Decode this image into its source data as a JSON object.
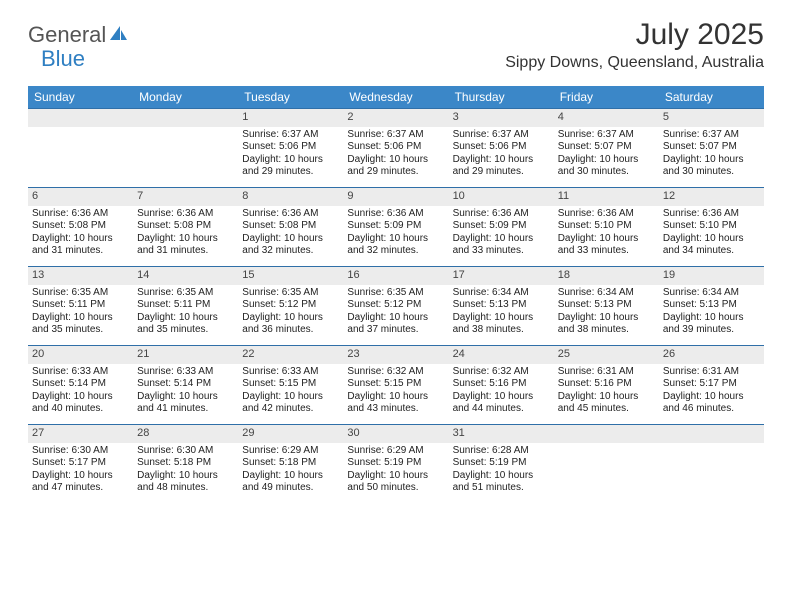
{
  "logo": {
    "part1": "General",
    "part2": "Blue"
  },
  "title": "July 2025",
  "location": "Sippy Downs, Queensland, Australia",
  "colors": {
    "header_bg": "#3b87c8",
    "header_text": "#ffffff",
    "daynum_bg": "#ececec",
    "week_border": "#2f6fa8",
    "logo_accent": "#2f7fc2",
    "logo_gray": "#555555",
    "body_bg": "#ffffff",
    "text": "#222222"
  },
  "day_headers": [
    "Sunday",
    "Monday",
    "Tuesday",
    "Wednesday",
    "Thursday",
    "Friday",
    "Saturday"
  ],
  "weeks": [
    [
      null,
      null,
      {
        "n": "1",
        "sr": "6:37 AM",
        "ss": "5:06 PM",
        "dl": "10 hours and 29 minutes."
      },
      {
        "n": "2",
        "sr": "6:37 AM",
        "ss": "5:06 PM",
        "dl": "10 hours and 29 minutes."
      },
      {
        "n": "3",
        "sr": "6:37 AM",
        "ss": "5:06 PM",
        "dl": "10 hours and 29 minutes."
      },
      {
        "n": "4",
        "sr": "6:37 AM",
        "ss": "5:07 PM",
        "dl": "10 hours and 30 minutes."
      },
      {
        "n": "5",
        "sr": "6:37 AM",
        "ss": "5:07 PM",
        "dl": "10 hours and 30 minutes."
      }
    ],
    [
      {
        "n": "6",
        "sr": "6:36 AM",
        "ss": "5:08 PM",
        "dl": "10 hours and 31 minutes."
      },
      {
        "n": "7",
        "sr": "6:36 AM",
        "ss": "5:08 PM",
        "dl": "10 hours and 31 minutes."
      },
      {
        "n": "8",
        "sr": "6:36 AM",
        "ss": "5:08 PM",
        "dl": "10 hours and 32 minutes."
      },
      {
        "n": "9",
        "sr": "6:36 AM",
        "ss": "5:09 PM",
        "dl": "10 hours and 32 minutes."
      },
      {
        "n": "10",
        "sr": "6:36 AM",
        "ss": "5:09 PM",
        "dl": "10 hours and 33 minutes."
      },
      {
        "n": "11",
        "sr": "6:36 AM",
        "ss": "5:10 PM",
        "dl": "10 hours and 33 minutes."
      },
      {
        "n": "12",
        "sr": "6:36 AM",
        "ss": "5:10 PM",
        "dl": "10 hours and 34 minutes."
      }
    ],
    [
      {
        "n": "13",
        "sr": "6:35 AM",
        "ss": "5:11 PM",
        "dl": "10 hours and 35 minutes."
      },
      {
        "n": "14",
        "sr": "6:35 AM",
        "ss": "5:11 PM",
        "dl": "10 hours and 35 minutes."
      },
      {
        "n": "15",
        "sr": "6:35 AM",
        "ss": "5:12 PM",
        "dl": "10 hours and 36 minutes."
      },
      {
        "n": "16",
        "sr": "6:35 AM",
        "ss": "5:12 PM",
        "dl": "10 hours and 37 minutes."
      },
      {
        "n": "17",
        "sr": "6:34 AM",
        "ss": "5:13 PM",
        "dl": "10 hours and 38 minutes."
      },
      {
        "n": "18",
        "sr": "6:34 AM",
        "ss": "5:13 PM",
        "dl": "10 hours and 38 minutes."
      },
      {
        "n": "19",
        "sr": "6:34 AM",
        "ss": "5:13 PM",
        "dl": "10 hours and 39 minutes."
      }
    ],
    [
      {
        "n": "20",
        "sr": "6:33 AM",
        "ss": "5:14 PM",
        "dl": "10 hours and 40 minutes."
      },
      {
        "n": "21",
        "sr": "6:33 AM",
        "ss": "5:14 PM",
        "dl": "10 hours and 41 minutes."
      },
      {
        "n": "22",
        "sr": "6:33 AM",
        "ss": "5:15 PM",
        "dl": "10 hours and 42 minutes."
      },
      {
        "n": "23",
        "sr": "6:32 AM",
        "ss": "5:15 PM",
        "dl": "10 hours and 43 minutes."
      },
      {
        "n": "24",
        "sr": "6:32 AM",
        "ss": "5:16 PM",
        "dl": "10 hours and 44 minutes."
      },
      {
        "n": "25",
        "sr": "6:31 AM",
        "ss": "5:16 PM",
        "dl": "10 hours and 45 minutes."
      },
      {
        "n": "26",
        "sr": "6:31 AM",
        "ss": "5:17 PM",
        "dl": "10 hours and 46 minutes."
      }
    ],
    [
      {
        "n": "27",
        "sr": "6:30 AM",
        "ss": "5:17 PM",
        "dl": "10 hours and 47 minutes."
      },
      {
        "n": "28",
        "sr": "6:30 AM",
        "ss": "5:18 PM",
        "dl": "10 hours and 48 minutes."
      },
      {
        "n": "29",
        "sr": "6:29 AM",
        "ss": "5:18 PM",
        "dl": "10 hours and 49 minutes."
      },
      {
        "n": "30",
        "sr": "6:29 AM",
        "ss": "5:19 PM",
        "dl": "10 hours and 50 minutes."
      },
      {
        "n": "31",
        "sr": "6:28 AM",
        "ss": "5:19 PM",
        "dl": "10 hours and 51 minutes."
      },
      null,
      null
    ]
  ],
  "labels": {
    "sunrise": "Sunrise: ",
    "sunset": "Sunset: ",
    "daylight": "Daylight: "
  }
}
